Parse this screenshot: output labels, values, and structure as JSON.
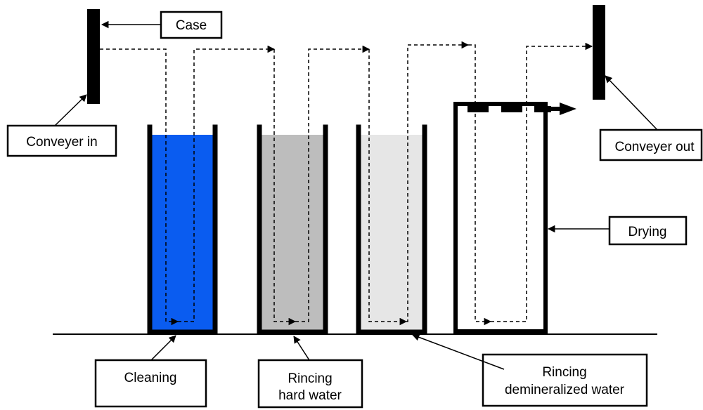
{
  "labels": {
    "case": "Case",
    "conveyer_in": "Conveyer in",
    "conveyer_out": "Conveyer out",
    "drying": "Drying",
    "cleaning": "Cleaning",
    "rincing_hard_line1": "Rincing",
    "rincing_hard_line2": "hard water",
    "rincing_demin_line1": "Rincing",
    "rincing_demin_line2": "demineralized water"
  },
  "colors": {
    "cleaning_liquid": "#0a5cf0",
    "hard_water_liquid": "#bdbdbd",
    "demineralized_water_liquid": "#e6e6e6",
    "lines": "#000000"
  }
}
